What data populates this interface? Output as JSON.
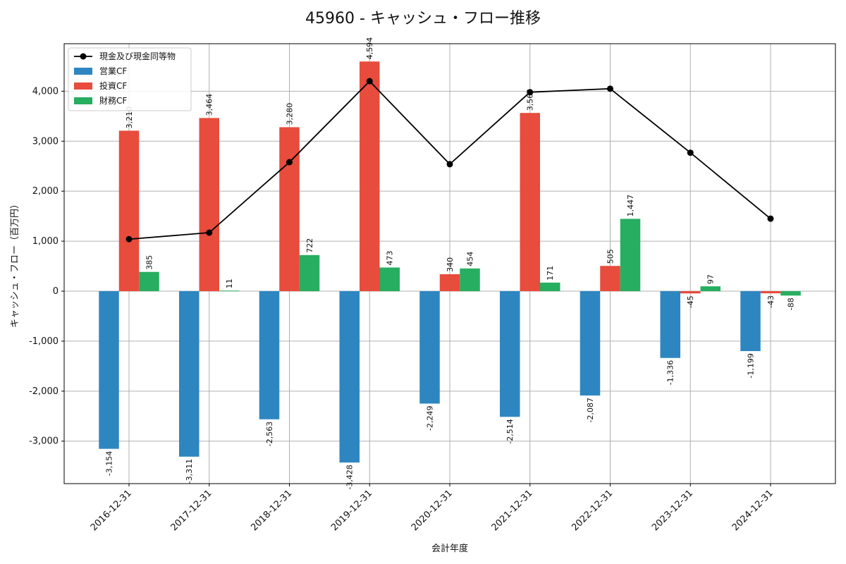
{
  "chart_data": {
    "type": "bar",
    "title": "45960 - キャッシュ・フロー推移",
    "xlabel": "会計年度",
    "ylabel": "キャッシュ・フロー（百万円）",
    "ylim": [
      -3850,
      4950
    ],
    "yticks": [
      -3000,
      -2000,
      -1000,
      0,
      1000,
      2000,
      3000,
      4000
    ],
    "ytick_labels": [
      "-3,000",
      "-2,000",
      "-1,000",
      "0",
      "1,000",
      "2,000",
      "3,000",
      "4,000"
    ],
    "grid": true,
    "legend_position": "top-left",
    "categories": [
      "2016-12-31",
      "2017-12-31",
      "2018-12-31",
      "2019-12-31",
      "2020-12-31",
      "2021-12-31",
      "2022-12-31",
      "2023-12-31",
      "2024-12-31"
    ],
    "series": [
      {
        "name": "営業CF",
        "kind": "bar",
        "color": "#2e86c1",
        "values": [
          -3154,
          -3311,
          -2563,
          -3428,
          -2249,
          -2514,
          -2087,
          -1336,
          -1199
        ],
        "labels": [
          "-3,154",
          "-3,311",
          "-2,563",
          "-3,428",
          "-2,249",
          "-2,514",
          "-2,087",
          "-1,336",
          "-1,199"
        ]
      },
      {
        "name": "投資CF",
        "kind": "bar",
        "color": "#e74c3c",
        "values": [
          3210,
          3464,
          3280,
          4594,
          340,
          3565,
          505,
          -45,
          -43
        ],
        "labels": [
          "3,210",
          "3,464",
          "3,280",
          "4,594",
          "340",
          "3,565",
          "505",
          "-45",
          "-43"
        ]
      },
      {
        "name": "財務CF",
        "kind": "bar",
        "color": "#27ae60",
        "values": [
          385,
          11,
          722,
          473,
          454,
          171,
          1447,
          97,
          -88
        ],
        "labels": [
          "385",
          "11",
          "722",
          "473",
          "454",
          "171",
          "1,447",
          "97",
          "-88"
        ]
      },
      {
        "name": "現金及び現金同等物",
        "kind": "line",
        "color": "#000000",
        "values": [
          1040,
          1170,
          2580,
          4200,
          2540,
          3980,
          4050,
          2770,
          1450
        ]
      }
    ]
  }
}
